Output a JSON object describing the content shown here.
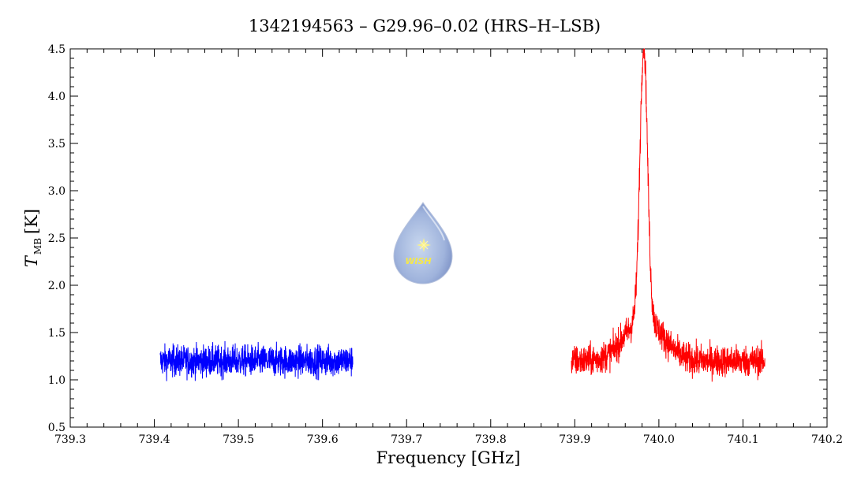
{
  "chart_data": {
    "type": "line",
    "title": "1342194563 – G29.96–0.02 (HRS–H–LSB)",
    "xlabel": "Frequency [GHz]",
    "ylabel_symbol": "T",
    "ylabel_subscript": "MB",
    "ylabel_unit": "[K]",
    "xlim": [
      739.3,
      740.2
    ],
    "ylim": [
      0.5,
      4.5
    ],
    "x_ticks": [
      "739.3",
      "739.4",
      "739.5",
      "739.6",
      "739.7",
      "739.8",
      "739.9",
      "740.0",
      "740.1",
      "740.2"
    ],
    "y_ticks": [
      "0.5",
      "1.0",
      "1.5",
      "2.0",
      "2.5",
      "3.0",
      "3.5",
      "4.0",
      "4.5"
    ],
    "grid": false,
    "logo_text": "WISH",
    "series": [
      {
        "color": "#0000ff",
        "x_range": [
          739.407,
          739.636
        ],
        "baseline": 1.2,
        "noise_amplitude": 0.28,
        "peaks": []
      },
      {
        "color": "#ff0000",
        "x_range": [
          739.896,
          740.126
        ],
        "baseline": 1.2,
        "noise_amplitude": 0.28,
        "peaks": [
          {
            "center": 739.982,
            "amplitude": 2.9,
            "width": 0.0045
          },
          {
            "center": 739.982,
            "amplitude": 0.45,
            "width": 0.022
          }
        ],
        "peak_value": 4.28
      }
    ]
  }
}
